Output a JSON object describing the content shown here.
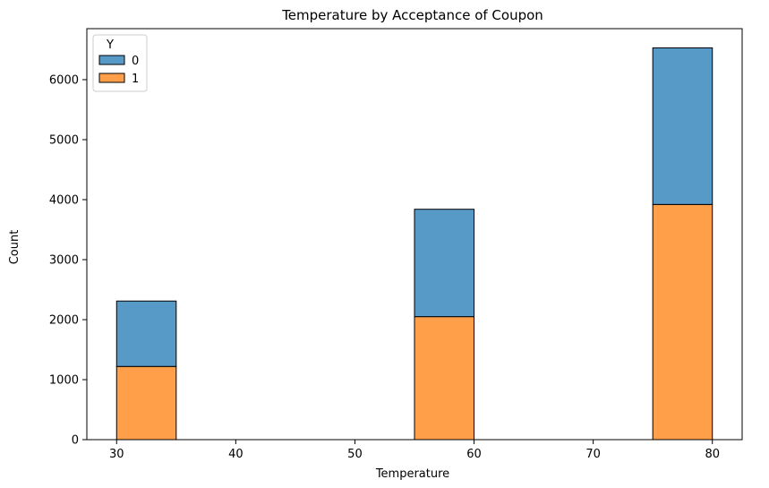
{
  "chart_data": {
    "type": "bar",
    "stacked": true,
    "title": "Temperature by Acceptance of Coupon",
    "xlabel": "Temperature",
    "ylabel": "Count",
    "xlim": [
      27.5,
      82.5
    ],
    "ylim": [
      0,
      6850
    ],
    "xticks": [
      30,
      40,
      50,
      60,
      70,
      80
    ],
    "yticks": [
      0,
      1000,
      2000,
      3000,
      4000,
      5000,
      6000
    ],
    "bin_width": 5,
    "bins": [
      30,
      35,
      40,
      45,
      50,
      55,
      60,
      65,
      70,
      75
    ],
    "series": [
      {
        "name": "1",
        "color": "#ff9f4a",
        "values": [
          1220,
          0,
          0,
          0,
          0,
          2050,
          0,
          0,
          0,
          3920
        ]
      },
      {
        "name": "0",
        "color": "#5799c7",
        "values": [
          1090,
          0,
          0,
          0,
          0,
          1790,
          0,
          0,
          0,
          2610
        ]
      }
    ],
    "legend": {
      "title": "Y",
      "position": "top-left",
      "entries": [
        {
          "label": "0",
          "color": "#5799c7"
        },
        {
          "label": "1",
          "color": "#ff9f4a"
        }
      ]
    },
    "grid": false
  }
}
